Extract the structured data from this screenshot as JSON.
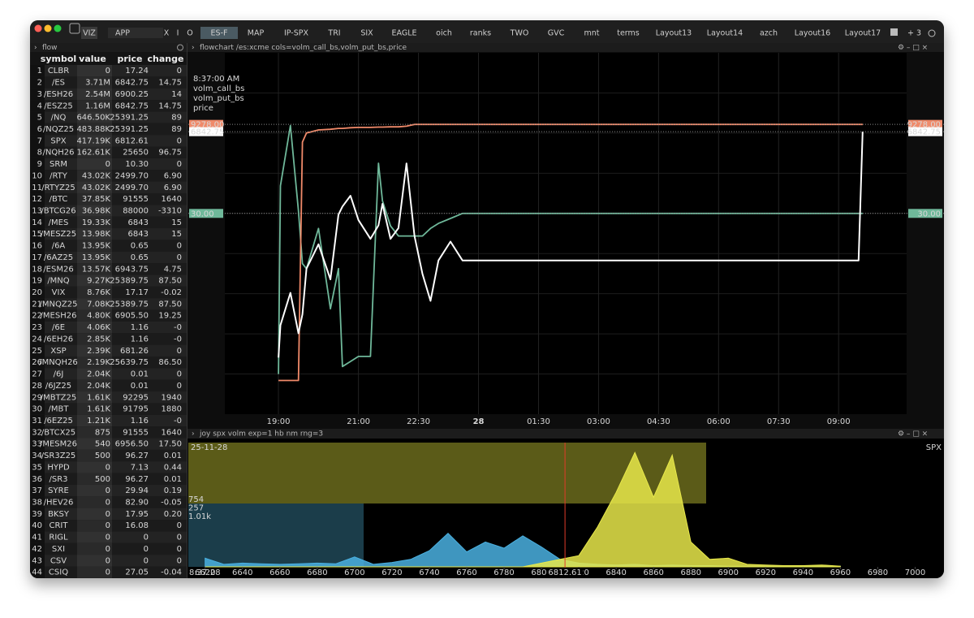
{
  "toolbar": {
    "tabs": [
      "VIZ",
      "APP",
      "X",
      "I",
      "O",
      "ES-F",
      "MAP",
      "IP-SPX",
      "TRI",
      "SIX",
      "EAGLE",
      "oich",
      "ranks",
      "TWO",
      "GVC",
      "mnt",
      "terms",
      "Layout13",
      "Layout14",
      "azch",
      "Layout16",
      "Layout17"
    ],
    "active_tab": "ES-F",
    "count": "3"
  },
  "flow": {
    "title": "flow",
    "columns": [
      "symbol",
      "value",
      "price",
      "change"
    ],
    "rows": [
      [
        "1",
        "CLBR",
        "0",
        "17.24",
        "0"
      ],
      [
        "2",
        "/ES",
        "3.71M",
        "6842.75",
        "14.75"
      ],
      [
        "3",
        "/ESH26",
        "2.54M",
        "6900.25",
        "14"
      ],
      [
        "4",
        "/ESZ25",
        "1.16M",
        "6842.75",
        "14.75"
      ],
      [
        "5",
        "/NQ",
        "646.50K",
        "25391.25",
        "89"
      ],
      [
        "6",
        "/NQZ25",
        "483.88K",
        "25391.25",
        "89"
      ],
      [
        "7",
        "SPX",
        "417.19K",
        "6812.61",
        "0"
      ],
      [
        "8",
        "/NQH26",
        "162.61K",
        "25650",
        "96.75"
      ],
      [
        "9",
        "SRM",
        "0",
        "10.30",
        "0"
      ],
      [
        "10",
        "/RTY",
        "43.02K",
        "2499.70",
        "6.90"
      ],
      [
        "11",
        "/RTYZ25",
        "43.02K",
        "2499.70",
        "6.90"
      ],
      [
        "12",
        "/BTC",
        "37.85K",
        "91555",
        "1640"
      ],
      [
        "13",
        "/BTCG26",
        "36.98K",
        "88000",
        "-3310"
      ],
      [
        "14",
        "/MES",
        "19.33K",
        "6843",
        "15"
      ],
      [
        "15",
        "/MESZ25",
        "13.98K",
        "6843",
        "15"
      ],
      [
        "16",
        "/6A",
        "13.95K",
        "0.65",
        "0"
      ],
      [
        "17",
        "/6AZ25",
        "13.95K",
        "0.65",
        "0"
      ],
      [
        "18",
        "/ESM26",
        "13.57K",
        "6943.75",
        "4.75"
      ],
      [
        "19",
        "/MNQ",
        "9.27K",
        "25389.75",
        "87.50"
      ],
      [
        "20",
        "VIX",
        "8.76K",
        "17.17",
        "-0.02"
      ],
      [
        "21",
        "/MNQZ25",
        "7.08K",
        "25389.75",
        "87.50"
      ],
      [
        "22",
        "/MESH26",
        "4.80K",
        "6905.50",
        "19.25"
      ],
      [
        "23",
        "/6E",
        "4.06K",
        "1.16",
        "-0"
      ],
      [
        "24",
        "/6EH26",
        "2.85K",
        "1.16",
        "-0"
      ],
      [
        "25",
        "XSP",
        "2.39K",
        "681.26",
        "0"
      ],
      [
        "26",
        "/MNQH26",
        "2.19K",
        "25639.75",
        "86.50"
      ],
      [
        "27",
        "/6J",
        "2.04K",
        "0.01",
        "0"
      ],
      [
        "28",
        "/6JZ25",
        "2.04K",
        "0.01",
        "0"
      ],
      [
        "29",
        "/MBTZ25",
        "1.61K",
        "92295",
        "1940"
      ],
      [
        "30",
        "/MBT",
        "1.61K",
        "91795",
        "1880"
      ],
      [
        "31",
        "/6EZ25",
        "1.21K",
        "1.16",
        "-0"
      ],
      [
        "32",
        "/BTCX25",
        "875",
        "91555",
        "1640"
      ],
      [
        "33",
        "/MESM26",
        "540",
        "6956.50",
        "17.50"
      ],
      [
        "34",
        "/SR3Z25",
        "500",
        "96.27",
        "0.01"
      ],
      [
        "35",
        "HYPD",
        "0",
        "7.13",
        "0.44"
      ],
      [
        "36",
        "/SR3",
        "500",
        "96.27",
        "0.01"
      ],
      [
        "37",
        "SYRE",
        "0",
        "29.94",
        "0.19"
      ],
      [
        "38",
        "/HEV26",
        "0",
        "82.90",
        "-0.05"
      ],
      [
        "39",
        "BKSY",
        "0",
        "17.95",
        "0.20"
      ],
      [
        "40",
        "CRIT",
        "0",
        "16.08",
        "0"
      ],
      [
        "41",
        "RIGL",
        "0",
        "0",
        "0"
      ],
      [
        "42",
        "SXI",
        "0",
        "0",
        "0"
      ],
      [
        "43",
        "CSV",
        "0",
        "0",
        "0"
      ],
      [
        "44",
        "CSIQ",
        "0",
        "27.05",
        "-0.04"
      ]
    ]
  },
  "chart_data": [
    {
      "type": "line",
      "title": "flowchart /es:xcme cols=volm_call_bs,volm_put_bs,price",
      "timestamp": "8:37:00 AM",
      "x": [
        19.0,
        19.05,
        19.3,
        19.5,
        19.6,
        19.7,
        20.0,
        20.3,
        20.5,
        20.6,
        20.8,
        21.0,
        21.3,
        21.5,
        21.6,
        21.8,
        22.0,
        22.2,
        22.4,
        22.6,
        22.8,
        23.0,
        23.3,
        23.6,
        33.5,
        33.6
      ],
      "xlim": [
        17.66,
        34.7
      ],
      "xticks": [
        {
          "value": 19,
          "label": "19:00"
        },
        {
          "value": 21,
          "label": "21:00"
        },
        {
          "value": 22.5,
          "label": "22:30"
        },
        {
          "value": 24,
          "label": "28"
        },
        {
          "value": 25.5,
          "label": "01:30"
        },
        {
          "value": 27,
          "label": "03:00"
        },
        {
          "value": 28.5,
          "label": "04:30"
        },
        {
          "value": 30,
          "label": "06:00"
        },
        {
          "value": 31.5,
          "label": "07:30"
        },
        {
          "value": 33,
          "label": "09:00"
        }
      ],
      "grid": true,
      "series": [
        {
          "name": "volm_call_bs",
          "color": "#6fb89a",
          "ylim": [
            -50,
            94
          ],
          "last_label": {
            "value": 30,
            "label": "30.00"
          },
          "values": [
            -34,
            41,
            65,
            31,
            10,
            8,
            24,
            -8,
            8,
            -31,
            -29,
            -27,
            -27,
            50,
            35,
            25,
            21,
            21,
            21,
            21,
            24,
            26,
            28,
            30,
            30,
            30
          ]
        },
        {
          "name": "volm_put_bs",
          "color": "#f08a6a",
          "ylim": [
            0,
            11570
          ],
          "last_label": {
            "value": 9278,
            "label": "9278.00"
          },
          "values": [
            1080,
            1080,
            1080,
            1080,
            8710,
            9000,
            9100,
            9120,
            9150,
            9150,
            9170,
            9180,
            9180,
            9190,
            9190,
            9200,
            9200,
            9220,
            9278,
            9278,
            9278,
            9278,
            9278,
            9278,
            9278,
            9278
          ]
        },
        {
          "name": "price",
          "color": "#ffffff",
          "ylim": [
            6738,
            6872
          ],
          "last_label": {
            "value": 6842.75,
            "label": "6842.75"
          },
          "values": [
            6759,
            6771,
            6783,
            6768,
            6775,
            6792,
            6801,
            6788,
            6812,
            6815,
            6819,
            6810,
            6803,
            6808,
            6816,
            6803,
            6807,
            6831,
            6804,
            6790,
            6780,
            6795,
            6802,
            6795,
            6795,
            6842.75
          ]
        }
      ]
    },
    {
      "type": "area",
      "title": "joy spx volm exp=1 hb nm rng=3",
      "date": "25-11-28",
      "symbol": "SPX",
      "time": "8:37:28",
      "x": [
        6620,
        6630,
        6640,
        6650,
        6660,
        6670,
        6680,
        6690,
        6700,
        6710,
        6720,
        6730,
        6740,
        6750,
        6760,
        6770,
        6780,
        6790,
        6800,
        6810,
        6820,
        6830,
        6840,
        6850,
        6860,
        6870,
        6880,
        6890,
        6900,
        6910,
        6920,
        6930,
        6940,
        6950,
        6960
      ],
      "xlim": [
        6611,
        7015
      ],
      "ylim": [
        0,
        1000
      ],
      "xticks": [
        6620,
        6640,
        6660,
        6680,
        6700,
        6720,
        6740,
        6760,
        6780,
        6800,
        6820,
        6840,
        6860,
        6880,
        6900,
        6920,
        6940,
        6960,
        6980,
        7000
      ],
      "spot": {
        "value": 6812.61,
        "label": "6812.61"
      },
      "annotations": [
        {
          "text": "754",
          "color": "#e8e84a"
        },
        {
          "text": "257",
          "color": "#4ab0e0"
        },
        {
          "text": "1.01k",
          "color": "#7fd6c0"
        }
      ],
      "series": [
        {
          "color": "#4ab0e0",
          "values": [
            70,
            20,
            30,
            25,
            20,
            25,
            30,
            25,
            80,
            20,
            35,
            60,
            130,
            270,
            120,
            200,
            150,
            250,
            160,
            60,
            30,
            20,
            15,
            20,
            10,
            15,
            10,
            10,
            5,
            5,
            5,
            5,
            5,
            5,
            5
          ]
        },
        {
          "color": "#e8e84a",
          "values": [
            0,
            0,
            0,
            0,
            0,
            0,
            0,
            0,
            0,
            0,
            0,
            0,
            0,
            0,
            0,
            0,
            0,
            0,
            30,
            60,
            90,
            320,
            600,
            920,
            560,
            900,
            200,
            60,
            70,
            20,
            15,
            10,
            10,
            15,
            5
          ]
        }
      ]
    }
  ]
}
